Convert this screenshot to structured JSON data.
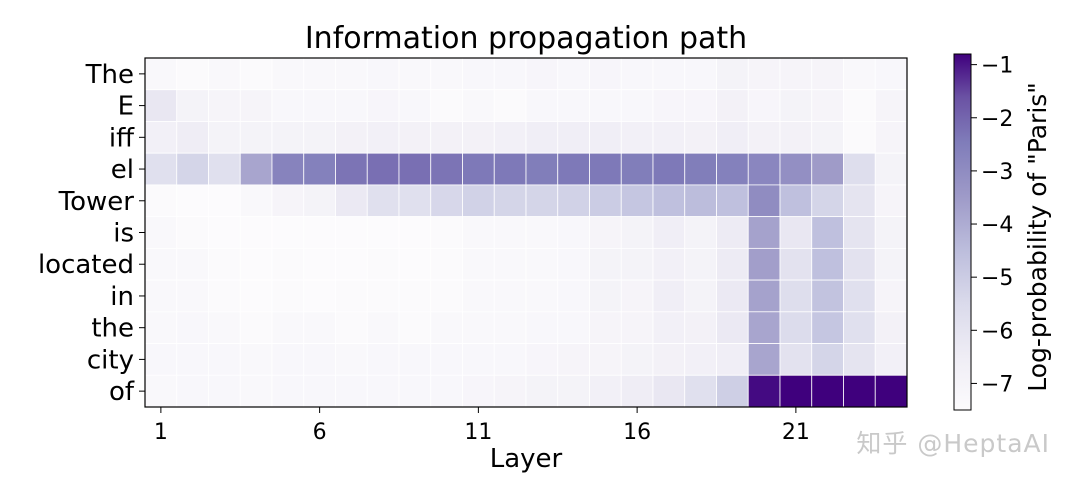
{
  "chart_data": {
    "type": "heatmap",
    "title": "Information propagation path",
    "xlabel": "Layer",
    "ylabel": "",
    "x_ticks": [
      1,
      6,
      11,
      16,
      21
    ],
    "x_range": [
      1,
      24
    ],
    "rows": [
      "The",
      "E",
      "iff",
      "el",
      "Tower",
      "is",
      "located",
      "in",
      "the",
      "city",
      "of"
    ],
    "colorbar": {
      "label": "Log-probability of \"Paris\"",
      "ticks": [
        "−1",
        "−2",
        "−3",
        "−4",
        "−5",
        "−6",
        "−7"
      ],
      "tick_values": [
        -1,
        -2,
        -3,
        -4,
        -5,
        -6,
        -7
      ],
      "min": -7.5,
      "max": -0.8,
      "colors": {
        "low": "#fcfbfd",
        "mid": "#9e9ac8",
        "high": "#3f007d"
      }
    },
    "values": [
      [
        -7.3,
        -7.4,
        -7.3,
        -7.4,
        -7.3,
        -7.3,
        -7.3,
        -7.2,
        -7.3,
        -7.3,
        -7.2,
        -7.2,
        -7.1,
        -7.2,
        -7.1,
        -7.2,
        -7.2,
        -7.2,
        -6.9,
        -7.0,
        -7.0,
        -7.0,
        -7.3,
        -7.2
      ],
      [
        -6.2,
        -6.9,
        -7.0,
        -7.0,
        -7.2,
        -7.2,
        -7.2,
        -7.1,
        -7.2,
        -7.4,
        -7.3,
        -7.4,
        -7.2,
        -7.2,
        -7.2,
        -7.2,
        -7.1,
        -7.1,
        -6.8,
        -7.1,
        -6.9,
        -7.0,
        -7.4,
        -7.0
      ],
      [
        -6.7,
        -6.5,
        -6.9,
        -6.9,
        -6.9,
        -6.9,
        -6.8,
        -6.7,
        -6.8,
        -6.8,
        -6.8,
        -6.7,
        -6.6,
        -6.6,
        -6.6,
        -6.7,
        -6.7,
        -6.8,
        -6.6,
        -6.8,
        -6.8,
        -6.9,
        -7.4,
        -7.0
      ],
      [
        -5.8,
        -5.3,
        -5.8,
        -3.8,
        -2.7,
        -2.6,
        -2.3,
        -2.2,
        -2.2,
        -2.3,
        -2.4,
        -2.4,
        -2.5,
        -2.4,
        -2.4,
        -2.5,
        -2.4,
        -2.5,
        -2.6,
        -2.8,
        -3.1,
        -3.5,
        -5.7,
        -6.9
      ],
      [
        -7.4,
        -7.5,
        -7.5,
        -7.3,
        -7.0,
        -6.9,
        -6.3,
        -5.8,
        -5.8,
        -5.4,
        -5.2,
        -5.3,
        -5.3,
        -5.2,
        -5.0,
        -4.8,
        -4.6,
        -4.5,
        -4.6,
        -3.0,
        -4.6,
        -5.3,
        -6.0,
        -7.0
      ],
      [
        -7.3,
        -7.4,
        -7.5,
        -7.6,
        -7.5,
        -7.5,
        -7.6,
        -7.5,
        -7.5,
        -7.4,
        -7.3,
        -7.3,
        -7.3,
        -7.2,
        -7.0,
        -6.9,
        -6.6,
        -6.9,
        -6.4,
        -3.7,
        -6.2,
        -4.6,
        -6.0,
        -6.9
      ],
      [
        -7.3,
        -7.3,
        -7.4,
        -7.6,
        -7.4,
        -7.5,
        -7.5,
        -7.4,
        -7.5,
        -7.4,
        -7.3,
        -7.3,
        -7.3,
        -7.2,
        -6.9,
        -6.9,
        -6.7,
        -6.9,
        -6.4,
        -3.6,
        -5.9,
        -4.6,
        -5.9,
        -6.9
      ],
      [
        -7.3,
        -7.3,
        -7.4,
        -7.6,
        -7.4,
        -7.5,
        -7.4,
        -7.4,
        -7.4,
        -7.4,
        -7.3,
        -7.3,
        -7.3,
        -7.2,
        -6.9,
        -7.0,
        -6.6,
        -6.9,
        -6.3,
        -3.7,
        -5.7,
        -4.7,
        -5.8,
        -7.0
      ],
      [
        -7.3,
        -7.2,
        -7.3,
        -7.4,
        -7.3,
        -7.3,
        -7.4,
        -7.3,
        -7.4,
        -7.3,
        -7.3,
        -7.3,
        -7.2,
        -7.2,
        -7.0,
        -7.0,
        -6.7,
        -6.8,
        -6.3,
        -3.8,
        -5.6,
        -4.8,
        -5.8,
        -6.8
      ],
      [
        -7.2,
        -7.2,
        -7.2,
        -7.3,
        -7.2,
        -7.2,
        -7.3,
        -7.2,
        -7.2,
        -7.2,
        -7.2,
        -7.2,
        -7.1,
        -7.0,
        -7.0,
        -6.9,
        -6.8,
        -6.7,
        -6.6,
        -3.8,
        -5.9,
        -5.3,
        -6.0,
        -6.7
      ],
      [
        -7.3,
        -7.2,
        -7.2,
        -7.3,
        -7.2,
        -7.2,
        -7.2,
        -7.2,
        -7.2,
        -7.2,
        -7.1,
        -7.0,
        -6.9,
        -6.9,
        -6.7,
        -6.5,
        -6.2,
        -5.8,
        -5.1,
        -0.9,
        -0.8,
        -0.8,
        -0.8,
        -0.8
      ]
    ]
  },
  "watermark": "知乎 @HeptaAI"
}
